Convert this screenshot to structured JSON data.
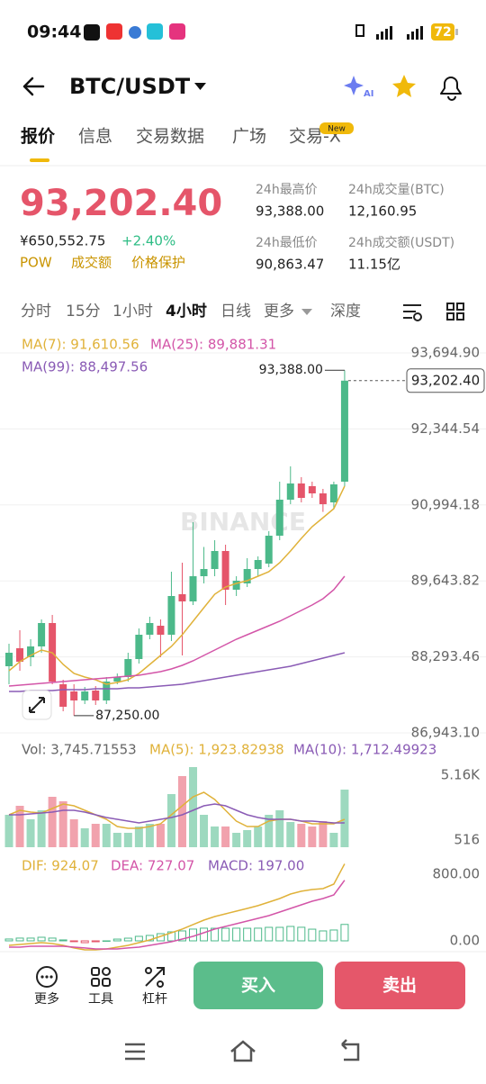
{
  "status_bar": {
    "time": "09:44",
    "battery": "72"
  },
  "header": {
    "pair": "BTC/USDT",
    "ai": "AI"
  },
  "tabs": [
    "报价",
    "信息",
    "交易数据",
    "广场",
    "交易-X"
  ],
  "new_badge": "New",
  "price": {
    "last": "93,202.40",
    "cny": "¥650,552.75",
    "change": "+2.40%",
    "tags": [
      "POW",
      "成交额",
      "价格保护"
    ]
  },
  "stats": [
    {
      "label": "24h最高价",
      "value": "93,388.00"
    },
    {
      "label": "24h成交量(BTC)",
      "value": "12,160.95"
    },
    {
      "label": "24h最低价",
      "value": "90,863.47"
    },
    {
      "label": "24h成交额(USDT)",
      "value": "11.15亿"
    }
  ],
  "intervals": [
    "分时",
    "15分",
    "1小时",
    "4小时",
    "日线",
    "更多",
    "深度"
  ],
  "watermark": "BINANCE",
  "chart_data": [
    {
      "type": "candlestick",
      "up_color": "#4cb98a",
      "down_color": "#e5556a",
      "open": [
        88127,
        88447,
        88287,
        88479,
        88895,
        87807,
        87679,
        87519,
        87695,
        87519,
        87855,
        87935,
        88255,
        88687,
        88847,
        88687,
        89407,
        89279,
        89727,
        89855,
        90175,
        89487,
        89599,
        89855,
        89951,
        90447,
        91087,
        91375,
        91327,
        91199,
        91039,
        91407
      ],
      "high": [
        88527,
        88767,
        88607,
        88959,
        89039,
        87887,
        87807,
        87759,
        87775,
        87935,
        87999,
        88367,
        88799,
        89007,
        88959,
        89807,
        89967,
        90687,
        90247,
        90367,
        90287,
        89727,
        90047,
        90079,
        90527,
        91407,
        91679,
        91487,
        91407,
        91279,
        91407,
        93388
      ],
      "low": [
        87807,
        88047,
        88127,
        88367,
        87807,
        87327,
        87250,
        87455,
        87439,
        87455,
        87807,
        87855,
        88175,
        88607,
        88287,
        88575,
        88319,
        89215,
        89599,
        89727,
        89215,
        89375,
        89535,
        89727,
        89887,
        90367,
        91007,
        91039,
        91119,
        90870,
        90927,
        91327
      ],
      "close": [
        88367,
        88207,
        88479,
        88895,
        87855,
        87407,
        87519,
        87679,
        87519,
        87855,
        87935,
        88255,
        88687,
        88895,
        88687,
        89375,
        89279,
        89727,
        89855,
        90175,
        89487,
        89647,
        89855,
        90015,
        90447,
        91087,
        91375,
        91119,
        91199,
        91007,
        91359,
        93202.4
      ],
      "series": [
        {
          "name": "MA(7): 91,610.56",
          "color": "#e0b23a",
          "values": [
            88047,
            88207,
            88319,
            88415,
            88367,
            88159,
            87999,
            87935,
            87887,
            87807,
            87839,
            87887,
            87999,
            88159,
            88319,
            88479,
            88687,
            88927,
            89167,
            89407,
            89535,
            89599,
            89647,
            89727,
            89807,
            89967,
            90175,
            90399,
            90607,
            90767,
            90927,
            91327
          ]
        },
        {
          "name": "MA(25): 89,881.31",
          "color": "#d355a8",
          "values": [
            87775,
            87791,
            87807,
            87823,
            87839,
            87855,
            87871,
            87887,
            87903,
            87919,
            87935,
            87951,
            87967,
            87999,
            88031,
            88079,
            88143,
            88223,
            88319,
            88415,
            88511,
            88607,
            88687,
            88767,
            88847,
            88927,
            89023,
            89119,
            89215,
            89327,
            89487,
            89727
          ]
        },
        {
          "name": "MA(99): 88,497.56",
          "color": "#8a5bb5",
          "values": [
            87679,
            87679,
            87695,
            87695,
            87695,
            87711,
            87711,
            87711,
            87727,
            87727,
            87727,
            87743,
            87743,
            87759,
            87775,
            87791,
            87807,
            87839,
            87871,
            87903,
            87935,
            87967,
            87999,
            88031,
            88063,
            88095,
            88127,
            88175,
            88223,
            88271,
            88319,
            88367
          ]
        }
      ],
      "ylim": [
        86879,
        93967
      ],
      "yticks": [
        {
          "value": 93694.9,
          "label": "93,694.90"
        },
        {
          "value": 92344.54,
          "label": "92,344.54"
        },
        {
          "value": 90994.18,
          "label": "90,994.18"
        },
        {
          "value": 89643.82,
          "label": "89,643.82"
        },
        {
          "value": 88293.46,
          "label": "88,293.46"
        },
        {
          "value": 86943.1,
          "label": "86,943.10"
        }
      ],
      "grid": true,
      "high_label": "93,388.00",
      "low_label": "87,250.00",
      "last_label": "93,202.40"
    },
    {
      "type": "volume",
      "title": "Vol: 3,745.71553",
      "values": [
        2322,
        2967,
        2000,
        2645,
        3612,
        3290,
        2000,
        1355,
        1677,
        1677,
        1032,
        1032,
        1484,
        1677,
        1677,
        3806,
        5096,
        5741,
        2322,
        1484,
        1484,
        1032,
        1226,
        1484,
        2322,
        2645,
        1806,
        1677,
        1484,
        1871,
        1032,
        4128
      ],
      "series": [
        {
          "name": "MA(5): 1,923.82938",
          "color": "#e0b23a",
          "values": [
            2322,
            2645,
            2516,
            2451,
            2774,
            3096,
            2967,
            2645,
            2322,
            2000,
            1484,
            1355,
            1355,
            1484,
            1677,
            2322,
            2967,
            3612,
            3935,
            3419,
            2645,
            1871,
            1484,
            1484,
            1871,
            2000,
            2000,
            1871,
            1677,
            1677,
            1677,
            2000
          ]
        },
        {
          "name": "MA(10): 1,712.49923",
          "color": "#8a5bb5",
          "values": [
            2322,
            2322,
            2387,
            2451,
            2516,
            2645,
            2645,
            2516,
            2322,
            2129,
            2000,
            1871,
            1742,
            1871,
            2000,
            2129,
            2322,
            2645,
            2967,
            3096,
            2967,
            2645,
            2322,
            2129,
            2000,
            2000,
            2000,
            1871,
            1871,
            1806,
            1742,
            1742
          ]
        }
      ],
      "ylim": [
        0,
        5870
      ],
      "yticks": [
        {
          "value": 5160,
          "label": "5.16K"
        },
        516
      ]
    },
    {
      "type": "macd",
      "series": [
        {
          "name": "DIF: 924.07",
          "color": "#e0b23a",
          "values": [
            -54,
            -43,
            -32,
            -22,
            -32,
            -54,
            -86,
            -108,
            -108,
            -97,
            -76,
            -54,
            -22,
            11,
            54,
            97,
            141,
            195,
            249,
            292,
            324,
            357,
            389,
            422,
            465,
            508,
            562,
            595,
            616,
            627,
            681,
            924.07
          ]
        },
        {
          "name": "DEA: 727.07",
          "color": "#d355a8",
          "values": [
            -76,
            -76,
            -65,
            -65,
            -65,
            -65,
            -76,
            -86,
            -97,
            -97,
            -97,
            -86,
            -76,
            -54,
            -32,
            -11,
            22,
            54,
            97,
            141,
            173,
            205,
            238,
            270,
            303,
            346,
            389,
            432,
            476,
            508,
            551,
            727.07
          ]
        }
      ],
      "histogram": {
        "name": "MACD: 197.00",
        "color": "#8a5bb5",
        "up_color": "#4cb98a",
        "down_color": "#e5556a",
        "values": [
          22,
          33,
          33,
          43,
          33,
          11,
          -10,
          -22,
          -11,
          0,
          21,
          32,
          54,
          65,
          86,
          108,
          119,
          141,
          152,
          151,
          151,
          152,
          151,
          152,
          162,
          162,
          173,
          163,
          140,
          119,
          130,
          197
        ]
      },
      "ylim": [
        -119,
        897
      ],
      "yticks": [
        {
          "value": 800,
          "label": "800.00"
        },
        {
          "value": 0,
          "label": "0.00"
        }
      ]
    }
  ],
  "bottom_bar": {
    "actions": [
      "更多",
      "工具",
      "杠杆"
    ],
    "buy": "买入",
    "sell": "卖出"
  }
}
